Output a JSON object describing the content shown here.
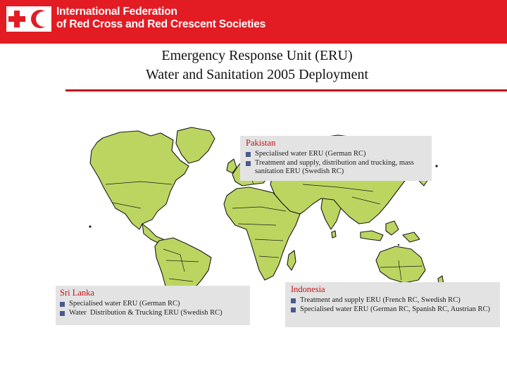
{
  "header": {
    "org_line1": "International Federation",
    "org_line2": "of Red Cross and Red Crescent Societies",
    "logo_icon": "red-cross-crescent-logo",
    "brand_color": "#e31b23"
  },
  "title": {
    "line1": "Emergency Response Unit (ERU)",
    "line2": "Water and Sanitation 2005 Deployment"
  },
  "map": {
    "land_color": "#bcd561",
    "border_color": "#1a1a1a"
  },
  "callouts": {
    "pakistan": {
      "heading": "Pakistan",
      "items": [
        "Specialised water ERU (German RC)",
        "Treatment and supply, distribution and trucking, mass sanitation ERU (Swedish RC)"
      ]
    },
    "sri_lanka": {
      "heading": "Sri Lanka",
      "items": [
        "Specialised water ERU (German RC)",
        "Water  Distribution & Trucking ERU (Swedish RC)"
      ]
    },
    "indonesia": {
      "heading": "Indonesia",
      "items": [
        "Treatment and supply ERU (French RC, Swedish RC)",
        "Specialised water ERU (German RC, Spanish RC, Austrian RC)"
      ]
    }
  },
  "accent": {
    "heading_color": "#c0141b",
    "bullet_color": "#4a5a8f",
    "callout_bg": "#e3e3e3"
  }
}
